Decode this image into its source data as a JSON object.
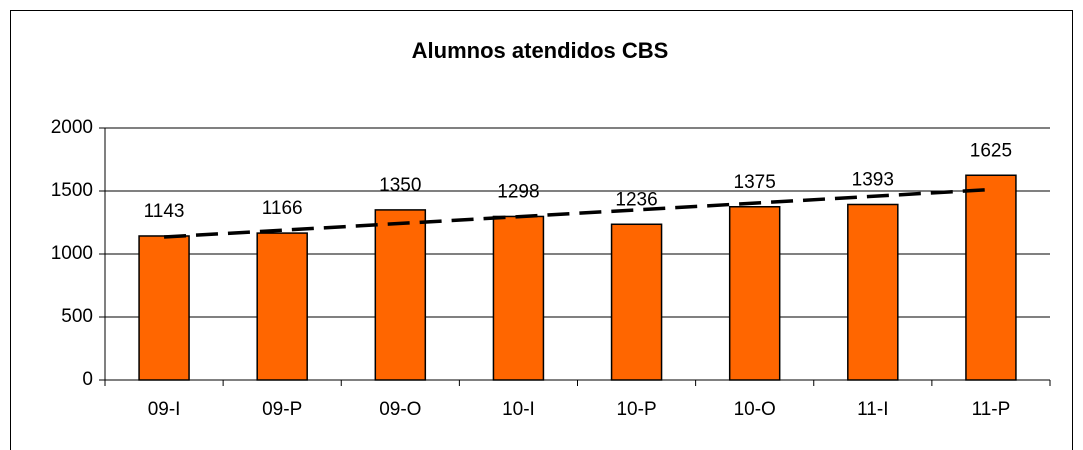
{
  "chart_data": {
    "type": "bar",
    "title": "Alumnos atendidos CBS",
    "categories": [
      "09-I",
      "09-P",
      "09-O",
      "10-I",
      "10-P",
      "10-O",
      "11-I",
      "11-P"
    ],
    "values": [
      1143,
      1166,
      1350,
      1298,
      1236,
      1375,
      1393,
      1625
    ],
    "color": "#ff6600",
    "ylim": [
      0,
      2000
    ],
    "yticks": [
      0,
      500,
      1000,
      1500,
      2000
    ],
    "grid": true,
    "trendline": "linear",
    "data_labels": true
  }
}
